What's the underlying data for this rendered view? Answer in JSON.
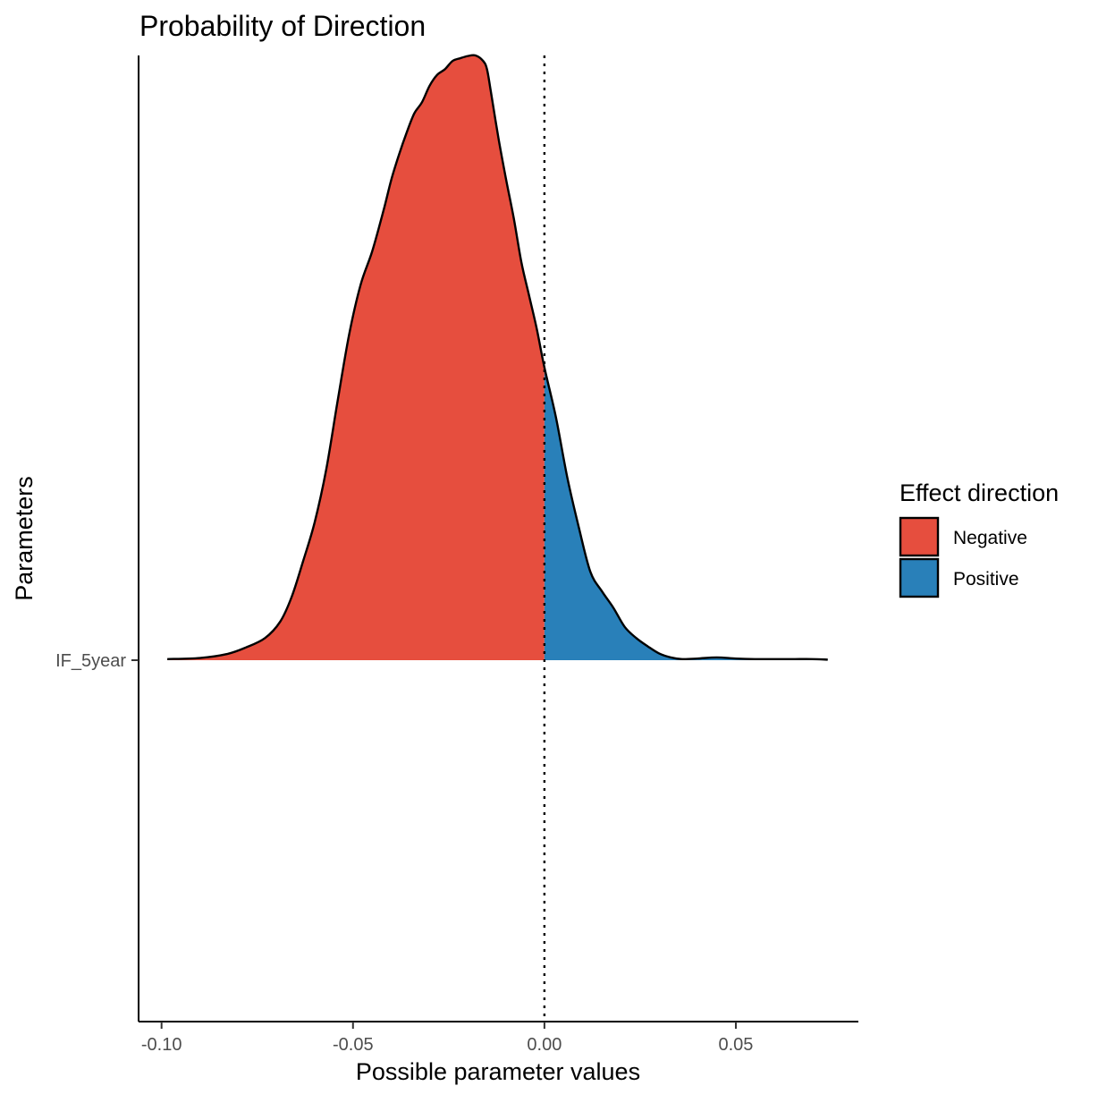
{
  "chart_data": {
    "type": "area",
    "title": "Probability of Direction",
    "xlabel": "Possible parameter values",
    "ylabel": "Parameters",
    "xlim": [
      -0.106,
      0.082
    ],
    "x_ticks": [
      -0.1,
      -0.05,
      0.0,
      0.05
    ],
    "x_tick_labels": [
      "-0.10",
      "-0.05",
      "0.00",
      "0.05"
    ],
    "y_categories": [
      "IF_5year"
    ],
    "reference_line": {
      "x": 0.0,
      "style": "dotted"
    },
    "grid": false,
    "legend": {
      "title": "Effect direction",
      "position": "right",
      "entries": [
        {
          "label": "Negative",
          "color": "#E64E3E"
        },
        {
          "label": "Positive",
          "color": "#2980B9"
        }
      ]
    },
    "series": [
      {
        "name": "Negative",
        "color": "#E64E3E",
        "x": [
          -0.0985,
          -0.09,
          -0.083,
          -0.078,
          -0.073,
          -0.069,
          -0.066,
          -0.063,
          -0.06,
          -0.057,
          -0.054,
          -0.051,
          -0.048,
          -0.045,
          -0.042,
          -0.04,
          -0.038,
          -0.036,
          -0.034,
          -0.032,
          -0.03,
          -0.028,
          -0.026,
          -0.024,
          -0.022,
          -0.02,
          -0.018,
          -0.016,
          -0.015,
          -0.014,
          -0.012,
          -0.01,
          -0.008,
          -0.006,
          -0.004,
          -0.002,
          0.0
        ],
        "density": [
          0.002,
          0.004,
          0.011,
          0.023,
          0.04,
          0.07,
          0.115,
          0.18,
          0.25,
          0.345,
          0.47,
          0.59,
          0.68,
          0.74,
          0.815,
          0.87,
          0.915,
          0.955,
          0.99,
          1.01,
          1.04,
          1.06,
          1.07,
          1.085,
          1.09,
          1.094,
          1.095,
          1.085,
          1.07,
          1.03,
          0.945,
          0.87,
          0.8,
          0.72,
          0.66,
          0.6,
          0.53
        ]
      },
      {
        "name": "Positive",
        "color": "#2980B9",
        "x": [
          0.0,
          0.003,
          0.006,
          0.009,
          0.012,
          0.015,
          0.018,
          0.021,
          0.024,
          0.027,
          0.03,
          0.033,
          0.036,
          0.04,
          0.045,
          0.05,
          0.055,
          0.06,
          0.065,
          0.07,
          0.074
        ],
        "density": [
          0.53,
          0.44,
          0.33,
          0.24,
          0.16,
          0.125,
          0.095,
          0.06,
          0.04,
          0.025,
          0.012,
          0.005,
          0.002,
          0.003,
          0.005,
          0.003,
          0.002,
          0.002,
          0.002,
          0.002,
          0.001
        ]
      }
    ]
  }
}
